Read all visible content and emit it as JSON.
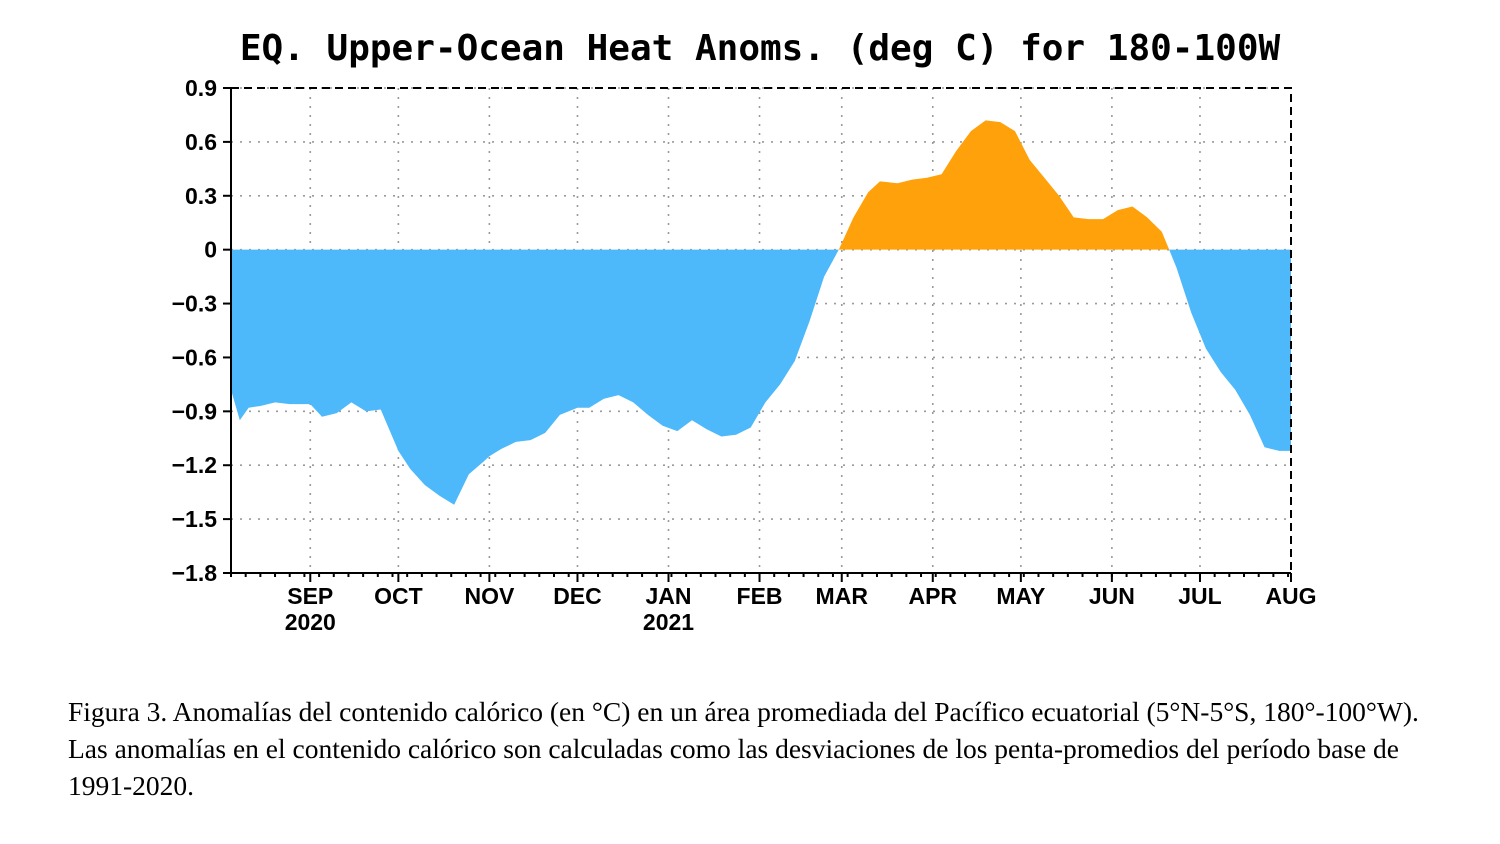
{
  "chart_data": {
    "type": "area",
    "title": "EQ. Upper-Ocean Heat Anoms. (deg C) for 180-100W",
    "xlabel": "",
    "ylabel": "",
    "ylim": [
      -1.8,
      0.9
    ],
    "xlim": [
      "2020-08-05",
      "2021-08-01"
    ],
    "yticks": [
      0.9,
      0.6,
      0.3,
      0,
      -0.3,
      -0.6,
      -0.9,
      -1.2,
      -1.5,
      -1.8
    ],
    "ytick_labels": [
      "0.9",
      "0.6",
      "0.3",
      "0",
      "−0.3",
      "−0.6",
      "−0.9",
      "−1.2",
      "−1.5",
      "−1.8"
    ],
    "xticks": [
      {
        "date": "2020-09-01",
        "label": "SEP",
        "sublabel": "2020"
      },
      {
        "date": "2020-10-01",
        "label": "OCT",
        "sublabel": ""
      },
      {
        "date": "2020-11-01",
        "label": "NOV",
        "sublabel": ""
      },
      {
        "date": "2020-12-01",
        "label": "DEC",
        "sublabel": ""
      },
      {
        "date": "2021-01-01",
        "label": "JAN",
        "sublabel": "2021"
      },
      {
        "date": "2021-02-01",
        "label": "FEB",
        "sublabel": ""
      },
      {
        "date": "2021-03-01",
        "label": "MAR",
        "sublabel": ""
      },
      {
        "date": "2021-04-01",
        "label": "APR",
        "sublabel": ""
      },
      {
        "date": "2021-05-01",
        "label": "MAY",
        "sublabel": ""
      },
      {
        "date": "2021-06-01",
        "label": "JUN",
        "sublabel": ""
      },
      {
        "date": "2021-07-01",
        "label": "JUL",
        "sublabel": ""
      },
      {
        "date": "2021-08-01",
        "label": "AUG",
        "sublabel": ""
      }
    ],
    "grid": true,
    "positive_color": "#FFA10A",
    "negative_color": "#4DB8FA",
    "series": [
      {
        "x": [
          "2020-08-05",
          "2020-08-08",
          "2020-08-11",
          "2020-08-15",
          "2020-08-20",
          "2020-08-25",
          "2020-09-01",
          "2020-09-05",
          "2020-09-10",
          "2020-09-15",
          "2020-09-20",
          "2020-09-25",
          "2020-10-01",
          "2020-10-05",
          "2020-10-10",
          "2020-10-15",
          "2020-10-20",
          "2020-10-25",
          "2020-10-30",
          "2020-11-01",
          "2020-11-05",
          "2020-11-10",
          "2020-11-15",
          "2020-11-20",
          "2020-11-25",
          "2020-12-01",
          "2020-12-05",
          "2020-12-10",
          "2020-12-15",
          "2020-12-20",
          "2020-12-25",
          "2020-12-30",
          "2021-01-04",
          "2021-01-09",
          "2021-01-14",
          "2021-01-19",
          "2021-01-24",
          "2021-01-29",
          "2021-02-03",
          "2021-02-08",
          "2021-02-13",
          "2021-02-18",
          "2021-02-23",
          "2021-02-28",
          "2021-03-05",
          "2021-03-10",
          "2021-03-14",
          "2021-03-20",
          "2021-03-25",
          "2021-03-30",
          "2021-04-04",
          "2021-04-09",
          "2021-04-14",
          "2021-04-19",
          "2021-04-24",
          "2021-04-29",
          "2021-05-04",
          "2021-05-09",
          "2021-05-14",
          "2021-05-19",
          "2021-05-24",
          "2021-05-29",
          "2021-06-03",
          "2021-06-08",
          "2021-06-13",
          "2021-06-18",
          "2021-06-23",
          "2021-06-28",
          "2021-07-03",
          "2021-07-08",
          "2021-07-13",
          "2021-07-18",
          "2021-07-23",
          "2021-07-28",
          "2021-08-01"
        ],
        "values": [
          -0.78,
          -0.95,
          -0.88,
          -0.87,
          -0.85,
          -0.86,
          -0.86,
          -0.93,
          -0.91,
          -0.85,
          -0.9,
          -0.89,
          -1.12,
          -1.22,
          -1.31,
          -1.37,
          -1.42,
          -1.25,
          -1.18,
          -1.15,
          -1.11,
          -1.07,
          -1.06,
          -1.02,
          -0.92,
          -0.88,
          -0.88,
          -0.83,
          -0.81,
          -0.85,
          -0.92,
          -0.98,
          -1.01,
          -0.95,
          -1.0,
          -1.04,
          -1.03,
          -0.99,
          -0.85,
          -0.75,
          -0.62,
          -0.4,
          -0.15,
          0.0,
          0.18,
          0.32,
          0.38,
          0.37,
          0.39,
          0.4,
          0.42,
          0.55,
          0.66,
          0.72,
          0.71,
          0.66,
          0.5,
          0.4,
          0.3,
          0.18,
          0.17,
          0.17,
          0.22,
          0.24,
          0.18,
          0.1,
          -0.1,
          -0.35,
          -0.55,
          -0.68,
          -0.78,
          -0.92,
          -1.1,
          -1.12,
          -1.12
        ]
      }
    ]
  },
  "caption": "Figura 3. Anomalías del contenido calórico (en °C) en un área promediada del Pacífico ecuatorial (5°N-5°S, 180°-100°W). Las anomalías en el contenido calórico son calculadas como las desviaciones de los penta-promedios del período base de 1991-2020."
}
